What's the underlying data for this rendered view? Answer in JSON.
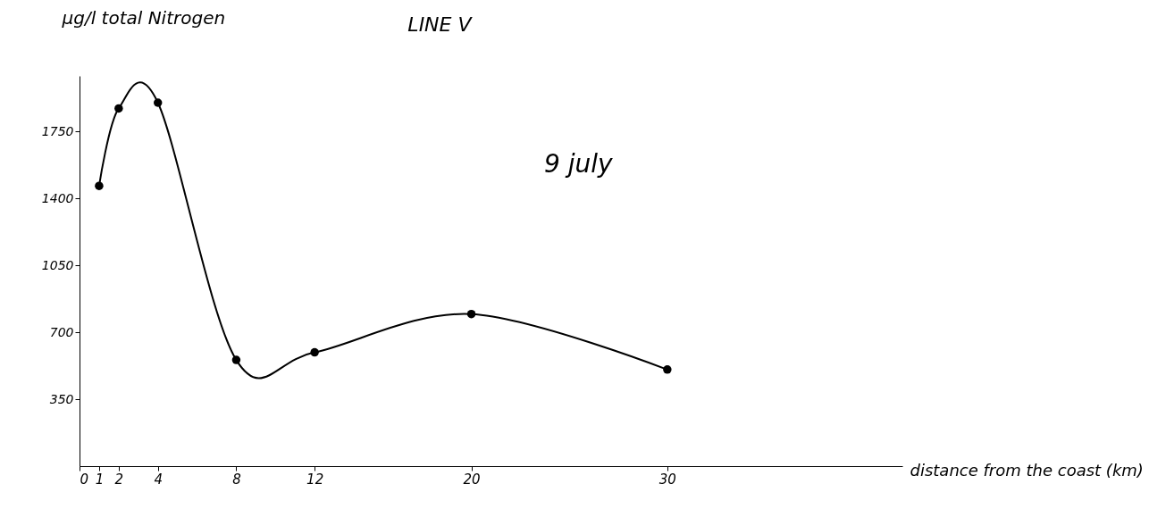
{
  "chart_data": {
    "type": "line",
    "title": "LINE V",
    "ylabel": "µg/l total Nitrogen",
    "xlabel": "distance from the coast (km)",
    "annotations": [
      "9 july"
    ],
    "x": [
      1,
      2,
      4,
      8,
      12,
      20,
      30
    ],
    "series": [
      {
        "color": "#000000",
        "values": [
          1465,
          1870,
          1900,
          555,
          595,
          795,
          505
        ]
      }
    ],
    "xlim": [
      0,
      42
    ],
    "xticks": [
      0,
      1,
      2,
      4,
      8,
      12,
      20,
      30
    ],
    "ylim": [
      0,
      2040
    ],
    "yticks": [
      350,
      700,
      1050,
      1400,
      1750
    ],
    "marker": "circle",
    "line_style": "solid",
    "grid": false,
    "legend": false
  }
}
